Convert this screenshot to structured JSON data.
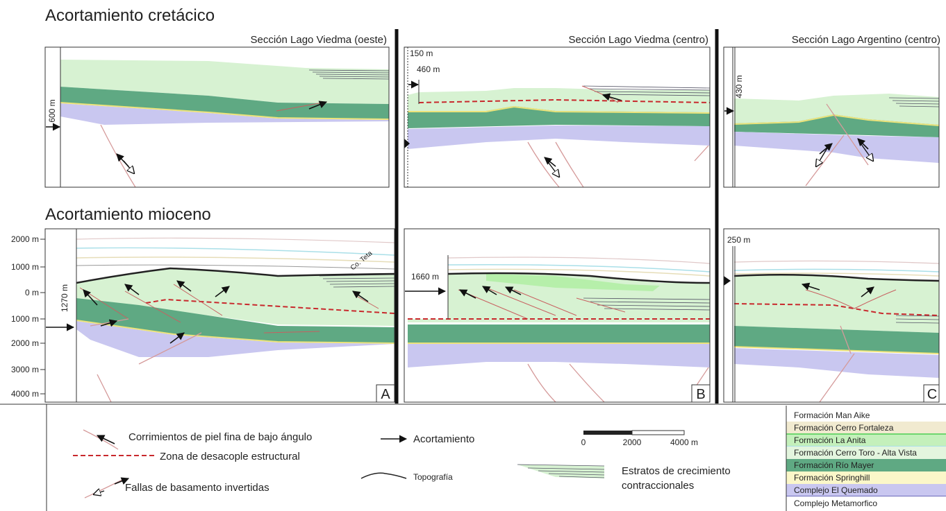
{
  "headings": [
    "Acortamiento cretácico",
    "Acortamiento mioceno"
  ],
  "panel_titles": [
    "Sección Lago Viedma (oeste)",
    "Sección Lago Viedma (centro)",
    "Sección Lago Argentino (centro)"
  ],
  "top_labels": [
    "600 m",
    "150 m",
    "460 m",
    "430 m"
  ],
  "depth_axis": [
    "2000 m",
    "1000 m",
    "0 m",
    "1000 m",
    "2000 m",
    "3000 m",
    "4000 m"
  ],
  "bottom_labels": [
    "1270 m",
    "1660 m",
    "250 m",
    "Co. Teta"
  ],
  "panel_letters": [
    "A",
    "B",
    "C"
  ],
  "legend": {
    "thin_skinned": "Corrimientos de piel fina de bajo ángulo",
    "detachment": "Zona de desacople estructural",
    "basement_faults": "Fallas de basamento invertidas",
    "shortening": "Acortamiento",
    "topography": "Topografía",
    "growth_strata": [
      "Estratos de crecimiento",
      "contraccionales"
    ],
    "scale": [
      "0",
      "2000",
      "4000 m"
    ]
  },
  "formations": [
    "Formación Man Aike",
    "Formación Cerro Fortaleza",
    "Formación La Anita",
    "Formación Cerro Toro - Alta Vista",
    "Formación Río Mayer",
    "Formación Springhill",
    "Complejo El Quemado",
    "Complejo Metamorfico"
  ]
}
